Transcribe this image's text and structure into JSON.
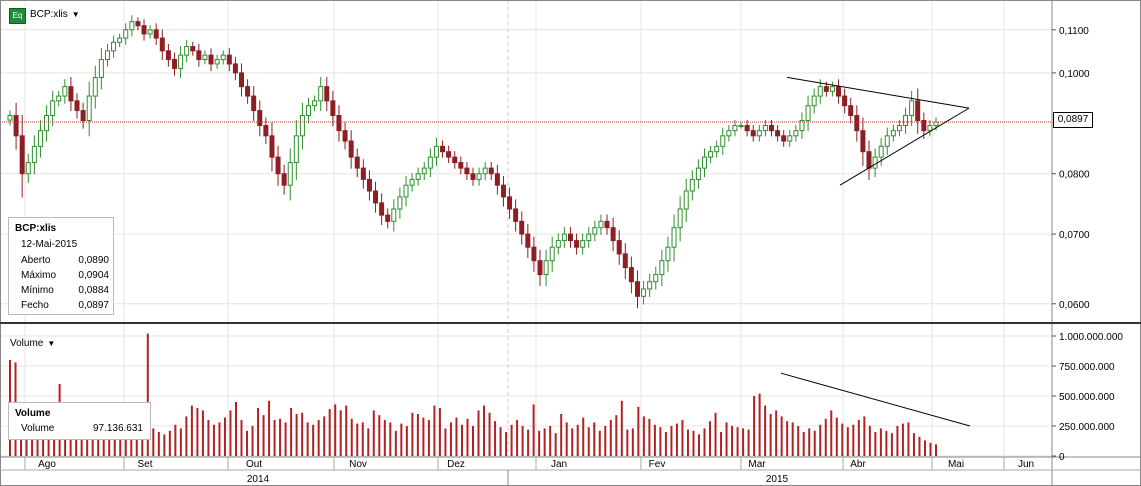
{
  "header": {
    "exchange_badge": "Eq",
    "symbol_label": "BCP:xlis",
    "dropdown_arrow": "▼"
  },
  "price_tag": "0,0897",
  "ohlc_panel": {
    "title": "BCP:xlis",
    "date": "12-Mai-2015",
    "rows": [
      {
        "label": "Aberto",
        "value": "0,0890"
      },
      {
        "label": "Máximo",
        "value": "0,0904"
      },
      {
        "label": "Mínimo",
        "value": "0,0884"
      },
      {
        "label": "Fecho",
        "value": "0,0897"
      }
    ]
  },
  "volume_header": {
    "label": "Volume",
    "dropdown_arrow": "▼"
  },
  "volume_panel": {
    "title": "Volume",
    "label": "Volume",
    "value": "97.136.631"
  },
  "colors": {
    "up": "#2f8f2f",
    "down": "#8c1e24",
    "grid": "#e4e4e4",
    "last_price_line": "#c0392b",
    "volume_bar": "#b22222"
  },
  "chart_data": [
    {
      "type": "candlestick",
      "title": "BCP:xlis",
      "y_scale": "log",
      "y_ticks": [
        "0,1100",
        "0,1000",
        "0,0800",
        "0,0700",
        "0,0600"
      ],
      "y_tick_values": [
        0.11,
        0.1,
        0.08,
        0.07,
        0.06
      ],
      "ylim": [
        0.0575,
        0.1175
      ],
      "x_month_labels": [
        "Ago",
        "Set",
        "Out",
        "Nov",
        "Dez",
        "Jan",
        "Fev",
        "Mar",
        "Abr",
        "Mai",
        "Jun"
      ],
      "x_year_labels": [
        "2014",
        "2015"
      ],
      "last_price": 0.0897,
      "triangle_pattern": {
        "start_date": "Mar 2015",
        "upper_start": 0.099,
        "lower_start": 0.078,
        "apex_value": 0.0925
      },
      "closes_approx": [
        0.091,
        0.087,
        0.08,
        0.082,
        0.085,
        0.088,
        0.091,
        0.094,
        0.095,
        0.097,
        0.094,
        0.092,
        0.09,
        0.095,
        0.099,
        0.103,
        0.105,
        0.107,
        0.108,
        0.11,
        0.112,
        0.111,
        0.109,
        0.11,
        0.108,
        0.105,
        0.103,
        0.101,
        0.104,
        0.106,
        0.105,
        0.103,
        0.104,
        0.102,
        0.103,
        0.104,
        0.102,
        0.1,
        0.097,
        0.095,
        0.092,
        0.089,
        0.087,
        0.083,
        0.08,
        0.078,
        0.082,
        0.087,
        0.091,
        0.093,
        0.094,
        0.097,
        0.094,
        0.091,
        0.088,
        0.086,
        0.083,
        0.081,
        0.079,
        0.077,
        0.075,
        0.073,
        0.072,
        0.074,
        0.076,
        0.078,
        0.079,
        0.08,
        0.081,
        0.083,
        0.085,
        0.084,
        0.083,
        0.082,
        0.081,
        0.08,
        0.079,
        0.08,
        0.081,
        0.08,
        0.078,
        0.076,
        0.074,
        0.072,
        0.07,
        0.068,
        0.066,
        0.064,
        0.066,
        0.068,
        0.069,
        0.07,
        0.069,
        0.068,
        0.069,
        0.07,
        0.071,
        0.072,
        0.071,
        0.069,
        0.067,
        0.065,
        0.063,
        0.061,
        0.062,
        0.063,
        0.064,
        0.066,
        0.068,
        0.071,
        0.074,
        0.077,
        0.079,
        0.081,
        0.083,
        0.084,
        0.085,
        0.087,
        0.088,
        0.089,
        0.089,
        0.088,
        0.087,
        0.088,
        0.089,
        0.088,
        0.087,
        0.086,
        0.087,
        0.088,
        0.09,
        0.093,
        0.095,
        0.097,
        0.096,
        0.097,
        0.095,
        0.093,
        0.091,
        0.088,
        0.084,
        0.081,
        0.083,
        0.085,
        0.087,
        0.088,
        0.089,
        0.091,
        0.094,
        0.09,
        0.088,
        0.089,
        0.0897
      ]
    },
    {
      "type": "bar",
      "title": "Volume",
      "y_ticks": [
        "1.000.000.000",
        "750.000.000",
        "500.000.000",
        "250.000.000",
        "0"
      ],
      "y_tick_values": [
        1000000000,
        750000000,
        500000000,
        250000000,
        0
      ],
      "ylim": [
        0,
        1050000000
      ],
      "last_value": 97136631,
      "triangle_pattern": {
        "start_date": "Mar 2015",
        "start_value": 690000000,
        "end_value": 250000000
      },
      "values_approx": [
        800,
        780,
        320,
        250,
        190,
        300,
        330,
        260,
        240,
        600,
        350,
        310,
        280,
        260,
        240,
        370,
        400,
        350,
        330,
        320,
        290,
        300,
        320,
        350,
        380,
        1020,
        230,
        200,
        180,
        210,
        260,
        230,
        330,
        420,
        400,
        380,
        300,
        260,
        280,
        320,
        380,
        450,
        300,
        210,
        250,
        400,
        340,
        460,
        300,
        310,
        280,
        400,
        350,
        360,
        280,
        260,
        300,
        330,
        390,
        430,
        380,
        420,
        310,
        270,
        280,
        230,
        380,
        340,
        300,
        280,
        210,
        270,
        250,
        360,
        350,
        320,
        300,
        420,
        400,
        230,
        280,
        320,
        260,
        310,
        250,
        380,
        420,
        360,
        290,
        240,
        200,
        260,
        300,
        250,
        220,
        430,
        210,
        230,
        250,
        190,
        350,
        280,
        230,
        260,
        320,
        240,
        280,
        210,
        250,
        300,
        340,
        460,
        220,
        230,
        410,
        330,
        310,
        260,
        240,
        200,
        250,
        270,
        300,
        220,
        210,
        180,
        230,
        290,
        360,
        200,
        280,
        250,
        240,
        230,
        220,
        500,
        520,
        420,
        350,
        380,
        330,
        290,
        280,
        250,
        200,
        230,
        210,
        260,
        310,
        380,
        320,
        270,
        240,
        260,
        300,
        330,
        250,
        200,
        230,
        210,
        190,
        250,
        270,
        280,
        190,
        160,
        130,
        110,
        97
      ]
    }
  ]
}
